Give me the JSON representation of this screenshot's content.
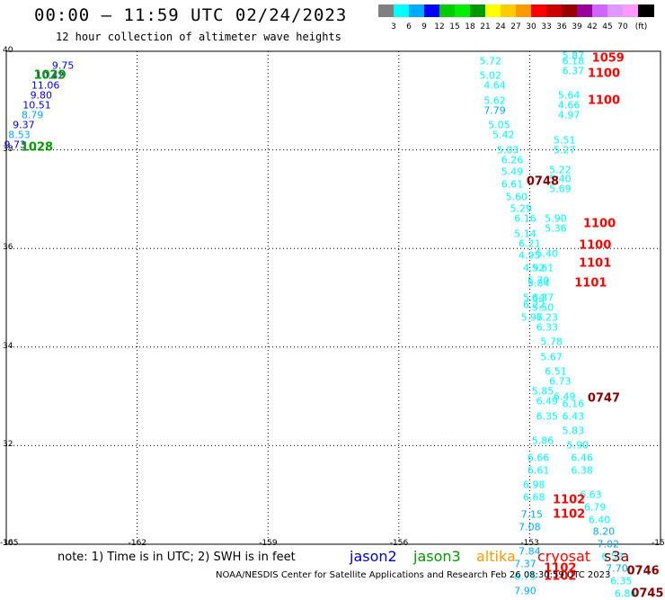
{
  "title": "00:00 – 11:59 UTC 02/24/2023",
  "subtitle": "12 hour collection of altimeter wave heights",
  "legend": {
    "colors": [
      "#808080",
      "#00ffff",
      "#00aaff",
      "#0000ff",
      "#00cc00",
      "#00ee00",
      "#009900",
      "#ffff00",
      "#ffcc00",
      "#ff9900",
      "#ff0000",
      "#cc0000",
      "#990000",
      "#990099",
      "#cc66ff",
      "#dd99ff",
      "#ff99ff",
      "#000000"
    ],
    "labels": [
      "3",
      "6",
      "9",
      "12",
      "15",
      "18",
      "21",
      "24",
      "27",
      "30",
      "33",
      "36",
      "39",
      "42",
      "45",
      "70",
      "(ft)"
    ]
  },
  "map": {
    "lon_range": [
      -165,
      -150
    ],
    "lat_range": [
      30,
      40
    ],
    "x_ticks": [
      "-165",
      "-162",
      "-159",
      "-156",
      "-153",
      "-150"
    ],
    "y_ticks": [
      "40",
      "38",
      "36",
      "34",
      "32",
      "30"
    ]
  },
  "chart_data": {
    "type": "scatter",
    "points": [
      {
        "lon": -163.7,
        "lat": 39.7,
        "v": "9.75",
        "c": "#0000ff"
      },
      {
        "lon": -164.0,
        "lat": 39.5,
        "v": "10.42",
        "c": "#0000ff"
      },
      {
        "lon": -164.1,
        "lat": 39.3,
        "v": "11.06",
        "c": "#0000ff"
      },
      {
        "lon": -164.2,
        "lat": 39.1,
        "v": "9.80",
        "c": "#0000ff"
      },
      {
        "lon": -164.3,
        "lat": 38.9,
        "v": "10.51",
        "c": "#0000ff"
      },
      {
        "lon": -164.4,
        "lat": 38.7,
        "v": "8.79",
        "c": "#00aaff"
      },
      {
        "lon": -164.6,
        "lat": 38.5,
        "v": "9.37",
        "c": "#0000ff"
      },
      {
        "lon": -164.7,
        "lat": 38.3,
        "v": "8.53",
        "c": "#00aaff"
      },
      {
        "lon": -164.8,
        "lat": 38.1,
        "v": "9.73",
        "c": "#0000ff"
      },
      {
        "lon": -153.9,
        "lat": 39.8,
        "v": "5.72",
        "c": "#00ffff"
      },
      {
        "lon": -153.9,
        "lat": 39.5,
        "v": "5.02",
        "c": "#00ffff"
      },
      {
        "lon": -153.8,
        "lat": 39.3,
        "v": "4.64",
        "c": "#00ffff"
      },
      {
        "lon": -153.8,
        "lat": 39.0,
        "v": "5.62",
        "c": "#00ffff"
      },
      {
        "lon": -153.8,
        "lat": 38.8,
        "v": "7.79",
        "c": "#00aaff"
      },
      {
        "lon": -153.7,
        "lat": 38.5,
        "v": "5.05",
        "c": "#00ffff"
      },
      {
        "lon": -153.6,
        "lat": 38.3,
        "v": "5.42",
        "c": "#00ffff"
      },
      {
        "lon": -153.5,
        "lat": 38.0,
        "v": "5.03",
        "c": "#00ffff"
      },
      {
        "lon": -153.4,
        "lat": 37.8,
        "v": "6.26",
        "c": "#00ffff"
      },
      {
        "lon": -153.4,
        "lat": 37.55,
        "v": "5.49",
        "c": "#00ffff"
      },
      {
        "lon": -153.4,
        "lat": 37.3,
        "v": "6.61",
        "c": "#00ffff"
      },
      {
        "lon": -153.3,
        "lat": 37.05,
        "v": "5.60",
        "c": "#00ffff"
      },
      {
        "lon": -153.2,
        "lat": 36.8,
        "v": "5.29",
        "c": "#00ffff"
      },
      {
        "lon": -153.1,
        "lat": 36.6,
        "v": "6.16",
        "c": "#00ffff"
      },
      {
        "lon": -153.1,
        "lat": 36.3,
        "v": "5.14",
        "c": "#00ffff"
      },
      {
        "lon": -153.0,
        "lat": 36.1,
        "v": "6.21",
        "c": "#00ffff"
      },
      {
        "lon": -153.0,
        "lat": 35.85,
        "v": "4.95",
        "c": "#00ffff"
      },
      {
        "lon": -152.9,
        "lat": 35.6,
        "v": "4.92",
        "c": "#00ffff"
      },
      {
        "lon": -152.8,
        "lat": 35.3,
        "v": "5.84",
        "c": "#00ffff"
      },
      {
        "lon": -152.7,
        "lat": 35.0,
        "v": "6.37",
        "c": "#00ffff"
      },
      {
        "lon": -152.7,
        "lat": 34.8,
        "v": "5.50",
        "c": "#00ffff"
      },
      {
        "lon": -152.6,
        "lat": 34.6,
        "v": "6.23",
        "c": "#00ffff"
      },
      {
        "lon": -152.6,
        "lat": 34.4,
        "v": "6.33",
        "c": "#00ffff"
      },
      {
        "lon": -152.5,
        "lat": 34.1,
        "v": "5.78",
        "c": "#00ffff"
      },
      {
        "lon": -152.5,
        "lat": 33.8,
        "v": "5.67",
        "c": "#00ffff"
      },
      {
        "lon": -152.4,
        "lat": 33.5,
        "v": "6.51",
        "c": "#00ffff"
      },
      {
        "lon": -152.3,
        "lat": 33.3,
        "v": "6.73",
        "c": "#00ffff"
      },
      {
        "lon": -152.7,
        "lat": 33.1,
        "v": "5.85",
        "c": "#00ffff"
      },
      {
        "lon": -152.6,
        "lat": 32.9,
        "v": "6.49",
        "c": "#00ffff"
      },
      {
        "lon": -152.6,
        "lat": 32.6,
        "v": "6.35",
        "c": "#00ffff"
      },
      {
        "lon": -152.2,
        "lat": 33.0,
        "v": "6.49",
        "c": "#00ffff"
      },
      {
        "lon": -152.0,
        "lat": 32.85,
        "v": "6.16",
        "c": "#00ffff"
      },
      {
        "lon": -152.0,
        "lat": 32.6,
        "v": "6.43",
        "c": "#00ffff"
      },
      {
        "lon": -152.0,
        "lat": 32.3,
        "v": "5.83",
        "c": "#00ffff"
      },
      {
        "lon": -151.9,
        "lat": 32.0,
        "v": "5.90",
        "c": "#00ffff"
      },
      {
        "lon": -151.8,
        "lat": 31.75,
        "v": "6.46",
        "c": "#00ffff"
      },
      {
        "lon": -151.8,
        "lat": 31.5,
        "v": "6.38",
        "c": "#00ffff"
      },
      {
        "lon": -152.7,
        "lat": 32.1,
        "v": "5.86",
        "c": "#00ffff"
      },
      {
        "lon": -152.8,
        "lat": 31.75,
        "v": "6.66",
        "c": "#00ffff"
      },
      {
        "lon": -152.8,
        "lat": 31.5,
        "v": "6.61",
        "c": "#00ffff"
      },
      {
        "lon": -152.9,
        "lat": 31.2,
        "v": "6.98",
        "c": "#00ffff"
      },
      {
        "lon": -152.9,
        "lat": 30.95,
        "v": "6.68",
        "c": "#00ffff"
      },
      {
        "lon": -152.95,
        "lat": 30.6,
        "v": "7.15",
        "c": "#00aaff"
      },
      {
        "lon": -153.0,
        "lat": 30.35,
        "v": "7.08",
        "c": "#00aaff"
      },
      {
        "lon": -153.0,
        "lat": 29.85,
        "v": "7.84",
        "c": "#00aaff"
      },
      {
        "lon": -153.1,
        "lat": 29.6,
        "v": "7.37",
        "c": "#00aaff"
      },
      {
        "lon": -153.1,
        "lat": 29.35,
        "v": "6.75",
        "c": "#00ffff"
      },
      {
        "lon": -153.1,
        "lat": 29.05,
        "v": "7.90",
        "c": "#00aaff"
      },
      {
        "lon": -151.6,
        "lat": 31.0,
        "v": "6.63",
        "c": "#00ffff"
      },
      {
        "lon": -151.5,
        "lat": 30.75,
        "v": "6.79",
        "c": "#00ffff"
      },
      {
        "lon": -151.4,
        "lat": 30.5,
        "v": "6.40",
        "c": "#00ffff"
      },
      {
        "lon": -151.3,
        "lat": 30.25,
        "v": "8.20",
        "c": "#00aaff"
      },
      {
        "lon": -151.2,
        "lat": 30.0,
        "v": "7.02",
        "c": "#00aaff"
      },
      {
        "lon": -151.1,
        "lat": 29.75,
        "v": "6.53",
        "c": "#00ffff"
      },
      {
        "lon": -151.0,
        "lat": 29.5,
        "v": "7.70",
        "c": "#00aaff"
      },
      {
        "lon": -150.9,
        "lat": 29.25,
        "v": "6.35",
        "c": "#00ffff"
      },
      {
        "lon": -150.8,
        "lat": 29.0,
        "v": "6.86",
        "c": "#00ffff"
      },
      {
        "lon": -152.0,
        "lat": 39.9,
        "v": "5.87",
        "c": "#00ffff"
      },
      {
        "lon": -152.0,
        "lat": 39.8,
        "v": "6.18",
        "c": "#00ffff"
      },
      {
        "lon": -152.0,
        "lat": 39.6,
        "v": "6.37",
        "c": "#00ffff"
      },
      {
        "lon": -152.1,
        "lat": 39.1,
        "v": "5.64",
        "c": "#00ffff"
      },
      {
        "lon": -152.1,
        "lat": 38.9,
        "v": "4.66",
        "c": "#00ffff"
      },
      {
        "lon": -152.1,
        "lat": 38.7,
        "v": "4.97",
        "c": "#00ffff"
      },
      {
        "lon": -152.2,
        "lat": 38.2,
        "v": "5.51",
        "c": "#00ffff"
      },
      {
        "lon": -152.2,
        "lat": 38.0,
        "v": "5.27",
        "c": "#00ffff"
      },
      {
        "lon": -152.3,
        "lat": 37.6,
        "v": "5.22",
        "c": "#00ffff"
      },
      {
        "lon": -152.3,
        "lat": 37.4,
        "v": "5.40",
        "c": "#00ffff"
      },
      {
        "lon": -152.3,
        "lat": 37.2,
        "v": "5.69",
        "c": "#00ffff"
      },
      {
        "lon": -152.4,
        "lat": 36.6,
        "v": "5.90",
        "c": "#00ffff"
      },
      {
        "lon": -152.4,
        "lat": 36.4,
        "v": "5.36",
        "c": "#00ffff"
      },
      {
        "lon": -152.6,
        "lat": 35.9,
        "v": "5.40",
        "c": "#00ffff"
      },
      {
        "lon": -152.7,
        "lat": 35.6,
        "v": "5.61",
        "c": "#00ffff"
      },
      {
        "lon": -152.8,
        "lat": 35.35,
        "v": "5.70",
        "c": "#00ffff"
      },
      {
        "lon": -152.9,
        "lat": 35.0,
        "v": "5.44",
        "c": "#00ffff"
      },
      {
        "lon": -152.9,
        "lat": 34.85,
        "v": "6.22",
        "c": "#00ffff"
      },
      {
        "lon": -152.95,
        "lat": 34.6,
        "v": "5.97",
        "c": "#00ffff"
      }
    ],
    "times": [
      {
        "lon": -164.0,
        "lat": 39.5,
        "t": "1029",
        "c": "#009900"
      },
      {
        "lon": -164.3,
        "lat": 38.05,
        "t": "1028",
        "c": "#009900"
      },
      {
        "lon": -151.2,
        "lat": 39.85,
        "t": "1059",
        "c": "#ff0000"
      },
      {
        "lon": -151.3,
        "lat": 39.55,
        "t": "1100",
        "c": "#ff0000"
      },
      {
        "lon": -151.3,
        "lat": 39.0,
        "t": "1100",
        "c": "#ff0000"
      },
      {
        "lon": -152.7,
        "lat": 37.35,
        "t": "0748",
        "c": "#880000"
      },
      {
        "lon": -151.4,
        "lat": 36.5,
        "t": "1100",
        "c": "#ff0000"
      },
      {
        "lon": -151.5,
        "lat": 36.05,
        "t": "1100",
        "c": "#ff0000"
      },
      {
        "lon": -151.5,
        "lat": 35.7,
        "t": "1101",
        "c": "#ff0000"
      },
      {
        "lon": -151.6,
        "lat": 35.3,
        "t": "1101",
        "c": "#ff0000"
      },
      {
        "lon": -151.3,
        "lat": 32.95,
        "t": "0747",
        "c": "#880000"
      },
      {
        "lon": -152.1,
        "lat": 30.9,
        "t": "1102",
        "c": "#ff0000"
      },
      {
        "lon": -152.1,
        "lat": 30.6,
        "t": "1102",
        "c": "#ff0000"
      },
      {
        "lon": -152.3,
        "lat": 29.5,
        "t": "1102",
        "c": "#ff0000"
      },
      {
        "lon": -152.3,
        "lat": 29.35,
        "t": "1102",
        "c": "#ff0000"
      },
      {
        "lon": -150.4,
        "lat": 29.45,
        "t": "0746",
        "c": "#880000"
      },
      {
        "lon": -150.3,
        "lat": 29.0,
        "t": "0745",
        "c": "#880000"
      }
    ]
  },
  "footer": {
    "note": "note:  1) Time is in UTC;  2) SWH is in feet",
    "satellites": [
      {
        "name": "jason2",
        "color": "#0000cc"
      },
      {
        "name": "jason3",
        "color": "#009900"
      },
      {
        "name": "altika",
        "color": "#ff9900"
      },
      {
        "name": "cryosat",
        "color": "#ff0000"
      },
      {
        "name": "s3a",
        "color": "#880000"
      }
    ],
    "credit": "NOAA/NESDIS Center for Satellite Applications and Research    Feb 26 08:30:59 UTC 2023"
  }
}
